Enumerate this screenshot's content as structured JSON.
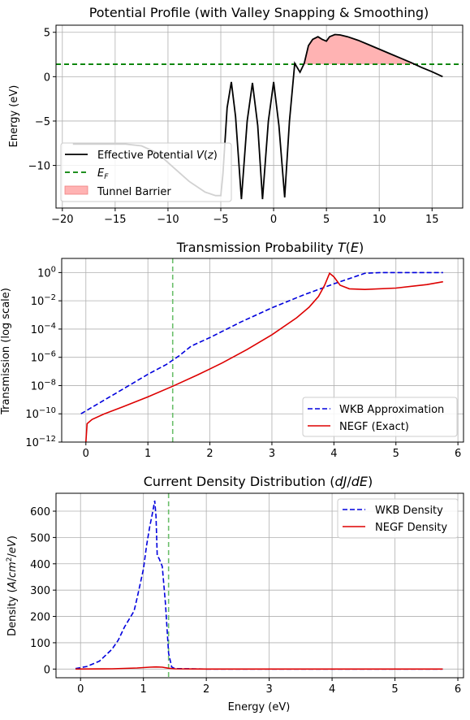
{
  "chart_data": [
    {
      "type": "line",
      "title": "Potential Profile (with Valley Snapping & Smoothing)",
      "xlabel": "",
      "ylabel": "Energy (eV)",
      "xlim": [
        -20.6,
        17.9
      ],
      "ylim": [
        -14.8,
        5.8
      ],
      "xticks": [
        -20,
        -15,
        -10,
        -5,
        0,
        5,
        10,
        15
      ],
      "xtick_labels": [
        "−20",
        "−15",
        "−10",
        "−5",
        "0",
        "5",
        "10",
        "15"
      ],
      "yticks": [
        5,
        0,
        -5,
        -10
      ],
      "ytick_labels": [
        "5",
        "0",
        "−5",
        "−10"
      ],
      "grid": true,
      "legend_position": "lower-left",
      "legend": [
        {
          "label": "Effective Potential V(z)",
          "color": "#000000",
          "style": "solid"
        },
        {
          "label": "E_F",
          "color": "#008000",
          "style": "dashed"
        },
        {
          "label": "Tunnel Barrier",
          "color": "#ffb3b3",
          "style": "fill"
        }
      ],
      "series": [
        {
          "name": "Effective Potential V(z)",
          "color": "#000000",
          "x": [
            -19,
            -14,
            -12.5,
            -11,
            -9.5,
            -8,
            -6.5,
            -5.5,
            -5,
            -4.8,
            -4.4,
            -4,
            -3.6,
            -3.05,
            -2.5,
            -2,
            -1.5,
            -1.05,
            -0.5,
            0,
            0.5,
            1.05,
            1.5,
            2,
            2.5,
            2.9,
            3.3,
            3.7,
            4.2,
            4.6,
            5.0,
            5.3,
            5.8,
            6.3,
            7,
            8,
            9,
            10,
            11,
            12,
            13,
            14,
            15,
            16
          ],
          "y": [
            -7.6,
            -7.6,
            -7.8,
            -8.6,
            -10.2,
            -11.8,
            -13.0,
            -13.4,
            -13.4,
            -11.0,
            -3.5,
            -0.6,
            -4.5,
            -13.8,
            -5.0,
            -0.7,
            -5.5,
            -13.8,
            -5.0,
            -0.6,
            -5.5,
            -13.6,
            -5.0,
            1.5,
            0.5,
            1.5,
            3.5,
            4.2,
            4.5,
            4.2,
            4.0,
            4.5,
            4.75,
            4.7,
            4.5,
            4.1,
            3.6,
            3.1,
            2.6,
            2.1,
            1.6,
            1.05,
            0.55,
            0.0
          ]
        },
        {
          "name": "E_F",
          "color": "#008000",
          "y_constant": 1.4
        }
      ],
      "fill": {
        "name": "Tunnel Barrier",
        "color": "#ffb3b3",
        "x_range": [
          2.9,
          13.2
        ],
        "above": 1.4
      }
    },
    {
      "type": "line",
      "title": "Transmission Probability T(E)",
      "xlabel": "",
      "ylabel": "Transmission (log scale)",
      "xlim": [
        -0.39,
        6.09
      ],
      "ylim": [
        -12,
        1
      ],
      "yscale": "log",
      "xticks": [
        0,
        1,
        2,
        3,
        4,
        5,
        6
      ],
      "xtick_labels": [
        "0",
        "1",
        "2",
        "3",
        "4",
        "5",
        "6"
      ],
      "yticks": [
        0,
        -2,
        -4,
        -6,
        -8,
        -10,
        -12
      ],
      "ytick_labels": [
        "10^0",
        "10^−2",
        "10^−4",
        "10^−6",
        "10^−8",
        "10^−10",
        "10^−12"
      ],
      "grid": true,
      "legend_position": "lower-right",
      "vline": {
        "x": 1.4,
        "color": "#6bbf6b",
        "style": "dashed"
      },
      "series": [
        {
          "name": "WKB Approximation",
          "color": "#0000dd",
          "style": "dashed",
          "x": [
            -0.08,
            0.5,
            1.0,
            1.3,
            1.5,
            1.7,
            2.0,
            2.5,
            3.0,
            3.5,
            4.0,
            4.5,
            4.75,
            5.0,
            5.5,
            5.76
          ],
          "log10_y": [
            -10.0,
            -8.5,
            -7.2,
            -6.5,
            -5.9,
            -5.2,
            -4.6,
            -3.5,
            -2.5,
            -1.6,
            -0.8,
            -0.05,
            0,
            0,
            0,
            0
          ]
        },
        {
          "name": "NEGF (Exact)",
          "color": "#dd0000",
          "style": "solid",
          "x": [
            0.0,
            0.02,
            0.1,
            0.3,
            0.6,
            1.0,
            1.4,
            1.8,
            2.2,
            2.6,
            3.0,
            3.4,
            3.6,
            3.75,
            3.85,
            3.93,
            4.0,
            4.1,
            4.25,
            4.5,
            5.0,
            5.5,
            5.76
          ],
          "log10_y": [
            -12.0,
            -10.7,
            -10.4,
            -10.0,
            -9.5,
            -8.8,
            -8.05,
            -7.25,
            -6.4,
            -5.45,
            -4.4,
            -3.2,
            -2.45,
            -1.7,
            -0.9,
            -0.05,
            -0.3,
            -0.9,
            -1.15,
            -1.2,
            -1.1,
            -0.85,
            -0.65
          ]
        }
      ]
    },
    {
      "type": "line",
      "title": "Current Density Distribution (dJ/dE)",
      "xlabel": "Energy (eV)",
      "ylabel": "Density (A/cm²/eV)",
      "xlim": [
        -0.39,
        6.09
      ],
      "ylim": [
        -33,
        668
      ],
      "xticks": [
        0,
        1,
        2,
        3,
        4,
        5,
        6
      ],
      "xtick_labels": [
        "0",
        "1",
        "2",
        "3",
        "4",
        "5",
        "6"
      ],
      "yticks": [
        0,
        100,
        200,
        300,
        400,
        500,
        600
      ],
      "ytick_labels": [
        "0",
        "100",
        "200",
        "300",
        "400",
        "500",
        "600"
      ],
      "grid": true,
      "legend_position": "top-right",
      "vline": {
        "x": 1.4,
        "color": "#6bbf6b",
        "style": "dashed"
      },
      "series": [
        {
          "name": "WKB Density",
          "color": "#0000dd",
          "style": "dashed",
          "x": [
            -0.08,
            0.1,
            0.3,
            0.5,
            0.6,
            0.7,
            0.8,
            0.85,
            0.9,
            1.0,
            1.05,
            1.1,
            1.15,
            1.18,
            1.2,
            1.22,
            1.25,
            1.3,
            1.35,
            1.4,
            1.45,
            1.5,
            2,
            3,
            4,
            5,
            5.76
          ],
          "y": [
            2,
            10,
            30,
            75,
            110,
            160,
            200,
            220,
            270,
            380,
            470,
            540,
            600,
            640,
            580,
            430,
            420,
            390,
            250,
            60,
            8,
            2,
            0,
            0,
            0,
            0,
            0
          ]
        },
        {
          "name": "NEGF Density",
          "color": "#dd0000",
          "style": "solid",
          "x": [
            -0.08,
            0.5,
            0.9,
            1.1,
            1.2,
            1.3,
            1.4,
            1.5,
            2,
            3,
            4,
            5,
            5.76
          ],
          "y": [
            0,
            1,
            4,
            7,
            8,
            7,
            3,
            1,
            0,
            0,
            0,
            0,
            0
          ]
        }
      ]
    }
  ]
}
